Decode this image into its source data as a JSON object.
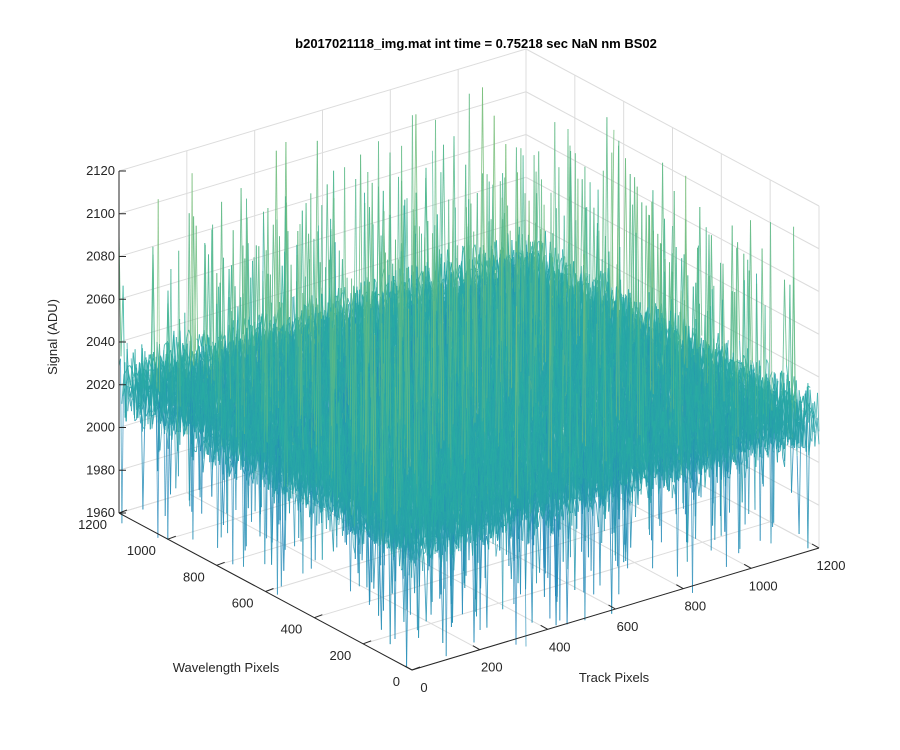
{
  "chart_data": {
    "type": "surface",
    "title": "b2017021118_img.mat int time = 0.75218 sec  NaN nm BS02",
    "xlabel": "Track Pixels",
    "ylabel": "Wavelength Pixels",
    "zlabel": "Signal (ADU)",
    "xlim": [
      0,
      1200
    ],
    "ylim": [
      0,
      1200
    ],
    "zlim": [
      1960,
      2120
    ],
    "x_ticks": [
      "0",
      "200",
      "400",
      "600",
      "800",
      "1000",
      "1200"
    ],
    "y_ticks": [
      "0",
      "200",
      "400",
      "600",
      "800",
      "1000",
      "1200"
    ],
    "z_ticks": [
      "1960",
      "1980",
      "2000",
      "2020",
      "2040",
      "2060",
      "2080",
      "2100",
      "2120"
    ],
    "grid": true,
    "colormap": "parula",
    "surface_stats": {
      "mean_signal": 2020,
      "max_signal": 2115,
      "min_signal": 1955
    }
  },
  "colors": {
    "grid": "#dcdcdc",
    "axis": "#262626",
    "surface_low": "#1f6fc9",
    "surface_mid": "#2ab0a0",
    "surface_high": "#d9d04a"
  }
}
